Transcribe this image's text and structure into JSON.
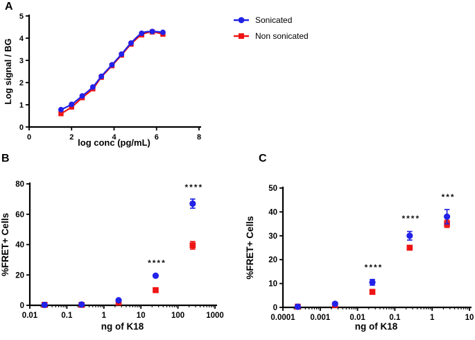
{
  "panels": {
    "a": {
      "label": "A"
    },
    "b": {
      "label": "B"
    },
    "c": {
      "label": "C"
    }
  },
  "legend": {
    "items": [
      {
        "label": "Sonicated",
        "color": "#2121e8",
        "marker": "circle"
      },
      {
        "label": "Non sonicated",
        "color": "#ee1414",
        "marker": "square"
      }
    ]
  },
  "colors": {
    "sonicated": "#2121e8",
    "non_sonicated": "#ee1414",
    "axis": "#000000",
    "text": "#000000"
  },
  "chart_data": [
    {
      "id": "A",
      "type": "line",
      "title": "",
      "xlabel": "log conc (pg/mL)",
      "ylabel": "Log signal / BG",
      "x_axis": {
        "type": "linear",
        "min": 0,
        "max": 8,
        "ticks": [
          0,
          2,
          4,
          6,
          8
        ]
      },
      "y_axis": {
        "min": 0,
        "max": 5,
        "ticks": [
          0,
          1,
          2,
          3,
          4,
          5
        ]
      },
      "grid": false,
      "series": [
        {
          "name": "Sonicated",
          "color": "#2121e8",
          "marker": "circle",
          "line": "smooth",
          "x": [
            1.5,
            2.0,
            2.5,
            3.0,
            3.4,
            3.9,
            4.35,
            4.8,
            5.3,
            5.8,
            6.3
          ],
          "y": [
            0.78,
            1.02,
            1.4,
            1.8,
            2.28,
            2.8,
            3.28,
            3.78,
            4.22,
            4.3,
            4.26
          ],
          "err": [
            0,
            0,
            0,
            0,
            0,
            0,
            0,
            0,
            0,
            0,
            0
          ]
        },
        {
          "name": "Non sonicated",
          "color": "#ee1414",
          "marker": "square",
          "line": "smooth",
          "x": [
            1.5,
            2.0,
            2.5,
            3.0,
            3.4,
            3.9,
            4.35,
            4.8,
            5.3,
            5.8,
            6.3
          ],
          "y": [
            0.6,
            0.9,
            1.32,
            1.72,
            2.24,
            2.76,
            3.24,
            3.73,
            4.15,
            4.28,
            4.18
          ],
          "err": [
            0,
            0,
            0,
            0,
            0,
            0,
            0,
            0,
            0,
            0,
            0
          ]
        }
      ],
      "annotations": []
    },
    {
      "id": "B",
      "type": "scatter",
      "title": "",
      "xlabel": "ng of K18",
      "ylabel": "%FRET+ Cells",
      "x_axis": {
        "type": "log",
        "min": 0.01,
        "max": 1000,
        "ticks": [
          0.01,
          0.1,
          1,
          10,
          100,
          1000
        ]
      },
      "y_axis": {
        "min": 0,
        "max": 80,
        "ticks": [
          0,
          20,
          40,
          60,
          80
        ]
      },
      "grid": false,
      "series": [
        {
          "name": "Sonicated",
          "color": "#2121e8",
          "marker": "circle",
          "line": "none",
          "x": [
            0.025,
            0.25,
            2.5,
            25,
            250
          ],
          "y": [
            0.3,
            0.5,
            3.3,
            19.5,
            67
          ],
          "err": [
            0,
            0,
            0,
            0,
            3
          ]
        },
        {
          "name": "Non sonicated",
          "color": "#ee1414",
          "marker": "square",
          "line": "none",
          "x": [
            0.025,
            0.25,
            2.5,
            25,
            250
          ],
          "y": [
            0.3,
            0.3,
            1.8,
            10,
            39.5
          ],
          "err": [
            0,
            0,
            0,
            0,
            2.5
          ]
        }
      ],
      "annotations": [
        {
          "x": 25,
          "y": 26,
          "text": "****"
        },
        {
          "x": 250,
          "y": 76,
          "text": "****"
        }
      ]
    },
    {
      "id": "C",
      "type": "scatter",
      "title": "",
      "xlabel": "ng of K18",
      "ylabel": "%FRET+ Cells",
      "x_axis": {
        "type": "log",
        "min": 0.0001,
        "max": 10,
        "ticks": [
          0.0001,
          0.001,
          0.01,
          0.1,
          1,
          10
        ]
      },
      "y_axis": {
        "min": 0,
        "max": 50,
        "ticks": [
          0,
          10,
          20,
          30,
          40,
          50
        ]
      },
      "grid": false,
      "series": [
        {
          "name": "Sonicated",
          "color": "#2121e8",
          "marker": "circle",
          "line": "none",
          "x": [
            0.00025,
            0.0025,
            0.025,
            0.25,
            2.5
          ],
          "y": [
            0.3,
            1.5,
            10.5,
            30,
            38
          ],
          "err": [
            0,
            0,
            1.2,
            1.8,
            3
          ]
        },
        {
          "name": "Non sonicated",
          "color": "#ee1414",
          "marker": "square",
          "line": "none",
          "x": [
            0.00025,
            0.0025,
            0.025,
            0.25,
            2.5
          ],
          "y": [
            0.3,
            1.0,
            6.5,
            25,
            35
          ],
          "err": [
            0,
            0,
            0,
            0,
            1.5
          ]
        }
      ],
      "annotations": [
        {
          "x": 0.025,
          "y": 15.5,
          "text": "****"
        },
        {
          "x": 0.25,
          "y": 36,
          "text": "****"
        },
        {
          "x": 2.5,
          "y": 45,
          "text": "***"
        }
      ]
    }
  ]
}
